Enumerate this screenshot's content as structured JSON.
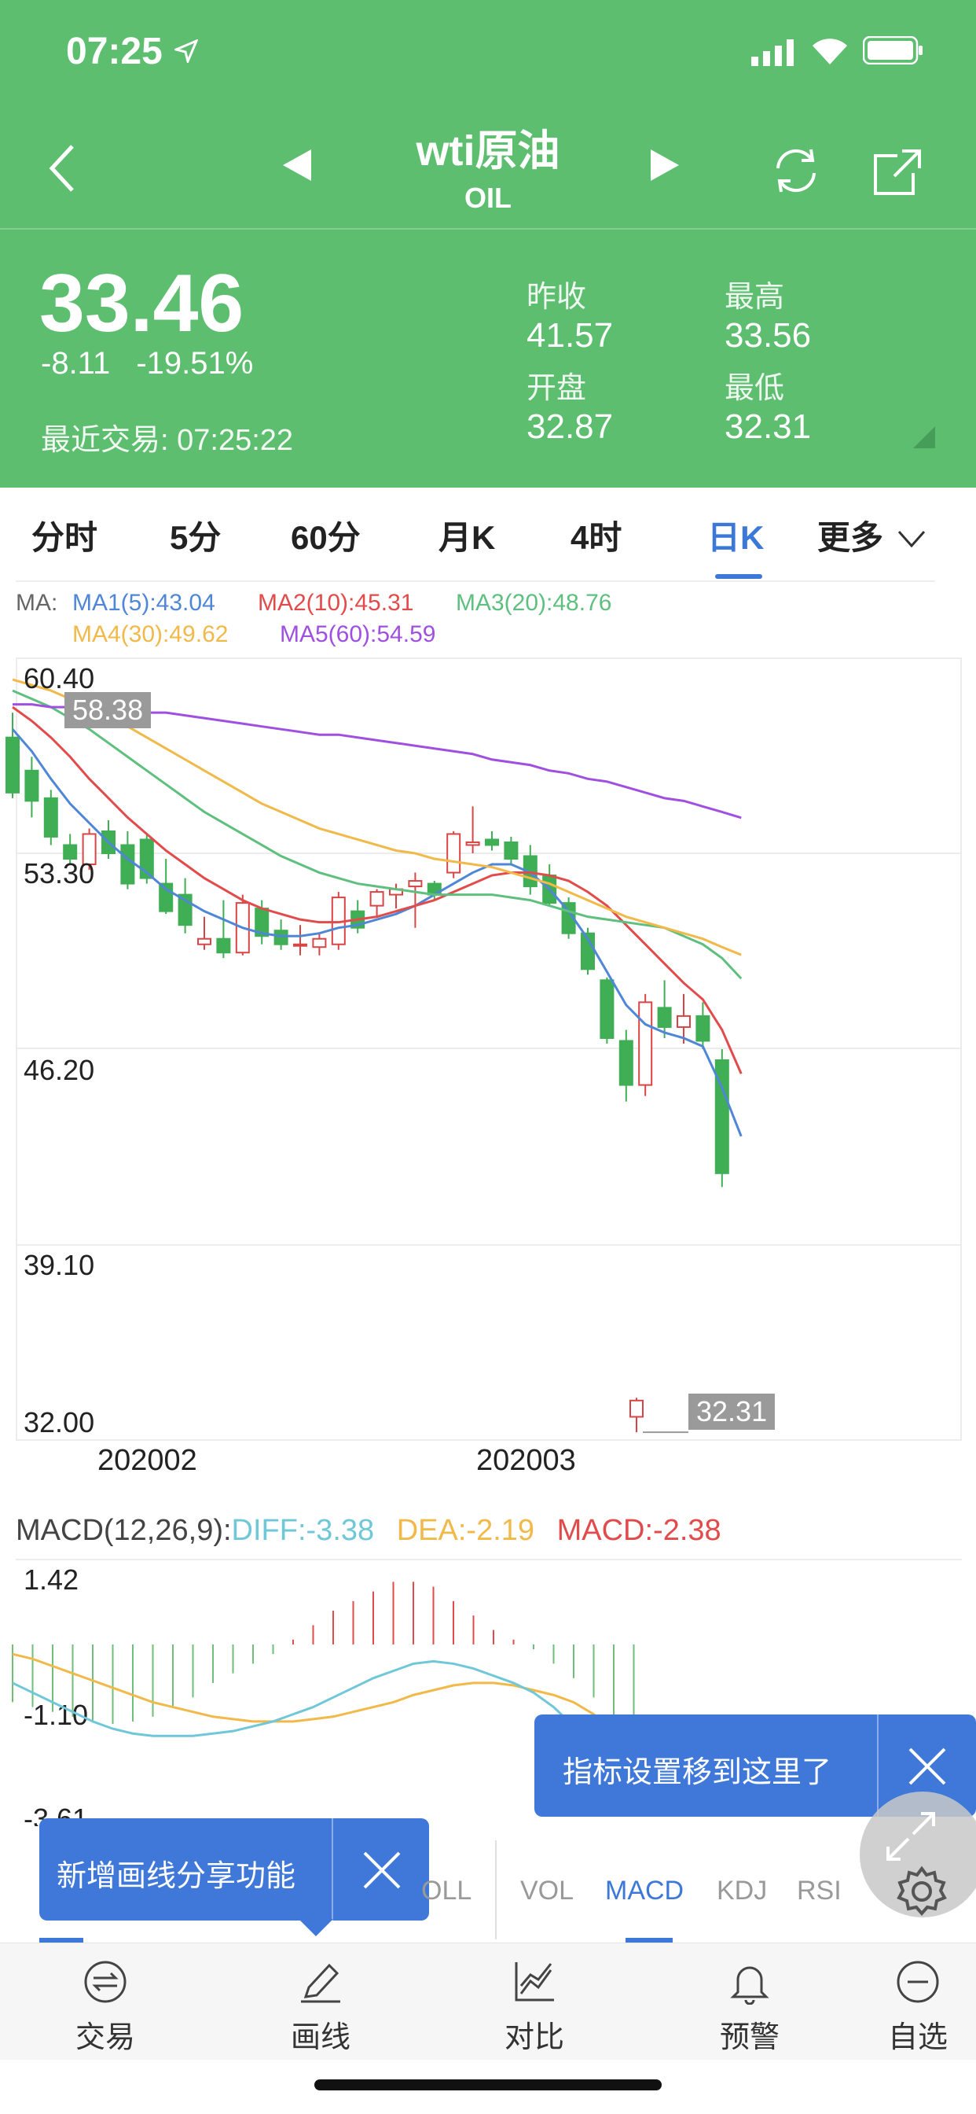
{
  "status_bar": {
    "time": "07:25"
  },
  "header": {
    "title": "wti原油",
    "subtitle": "OIL",
    "price": "33.46",
    "change": "-8.11",
    "change_pct": "-19.51%",
    "last_trade": "最近交易: 07:25:22",
    "stats": {
      "prev_close_label": "昨收",
      "prev_close": "41.57",
      "high_label": "最高",
      "high": "33.56",
      "open_label": "开盘",
      "open": "32.87",
      "low_label": "最低",
      "low": "32.31"
    }
  },
  "tabs": [
    "分时",
    "5分",
    "60分",
    "月K",
    "4时",
    "日K",
    "更多"
  ],
  "active_tab": "日K",
  "ma_legend": {
    "prefix": "MA:",
    "ma1": "MA1(5):43.04",
    "ma2": "MA2(10):45.31",
    "ma3": "MA3(20):48.76",
    "ma4": "MA4(30):49.62",
    "ma5": "MA5(60):54.59"
  },
  "colors": {
    "header_green": "#5dbe6f",
    "ma1": "#4f86d6",
    "ma2": "#e14b4b",
    "ma3": "#5fbf7f",
    "ma4": "#f0b94a",
    "ma5": "#a050e0",
    "up": "#d94545",
    "down": "#3fae55",
    "accent": "#3b78d8"
  },
  "chart_data": {
    "type": "candlestick",
    "y_axis_labels": [
      "60.40",
      "53.30",
      "46.20",
      "39.10",
      "32.00"
    ],
    "ylim": [
      32.0,
      60.4
    ],
    "x_axis_labels": [
      "202002",
      "202003"
    ],
    "highlight_high": "58.38",
    "highlight_low": "32.31",
    "candles": [
      {
        "o": 57.5,
        "h": 58.4,
        "l": 55.3,
        "c": 55.5
      },
      {
        "o": 56.3,
        "h": 56.8,
        "l": 54.6,
        "c": 55.2
      },
      {
        "o": 55.3,
        "h": 55.6,
        "l": 53.6,
        "c": 53.9
      },
      {
        "o": 53.6,
        "h": 54.0,
        "l": 52.9,
        "c": 53.1
      },
      {
        "o": 52.9,
        "h": 54.2,
        "l": 52.7,
        "c": 54.0
      },
      {
        "o": 54.1,
        "h": 54.5,
        "l": 53.1,
        "c": 53.3
      },
      {
        "o": 53.6,
        "h": 54.1,
        "l": 52.0,
        "c": 52.2
      },
      {
        "o": 53.8,
        "h": 54.0,
        "l": 52.2,
        "c": 52.4
      },
      {
        "o": 52.2,
        "h": 53.1,
        "l": 51.1,
        "c": 51.2
      },
      {
        "o": 51.8,
        "h": 52.4,
        "l": 50.4,
        "c": 50.7
      },
      {
        "o": 50.0,
        "h": 51.0,
        "l": 49.8,
        "c": 50.2
      },
      {
        "o": 50.2,
        "h": 51.6,
        "l": 49.5,
        "c": 49.7
      },
      {
        "o": 49.7,
        "h": 51.8,
        "l": 49.6,
        "c": 51.5
      },
      {
        "o": 51.3,
        "h": 51.6,
        "l": 50.0,
        "c": 50.3
      },
      {
        "o": 50.5,
        "h": 50.9,
        "l": 49.8,
        "c": 50.0
      },
      {
        "o": 50.0,
        "h": 50.7,
        "l": 49.6,
        "c": 50.0
      },
      {
        "o": 49.9,
        "h": 50.4,
        "l": 49.6,
        "c": 50.2
      },
      {
        "o": 50.0,
        "h": 51.9,
        "l": 49.8,
        "c": 51.7
      },
      {
        "o": 51.2,
        "h": 51.6,
        "l": 50.4,
        "c": 50.6
      },
      {
        "o": 51.4,
        "h": 52.0,
        "l": 51.0,
        "c": 51.9
      },
      {
        "o": 51.8,
        "h": 52.2,
        "l": 51.3,
        "c": 52.0
      },
      {
        "o": 52.1,
        "h": 52.6,
        "l": 50.6,
        "c": 52.3
      },
      {
        "o": 52.2,
        "h": 52.3,
        "l": 51.6,
        "c": 51.8
      },
      {
        "o": 52.6,
        "h": 54.1,
        "l": 52.4,
        "c": 54.0
      },
      {
        "o": 53.6,
        "h": 55.0,
        "l": 53.3,
        "c": 53.7
      },
      {
        "o": 53.8,
        "h": 54.1,
        "l": 53.4,
        "c": 53.6
      },
      {
        "o": 53.7,
        "h": 53.9,
        "l": 52.9,
        "c": 53.1
      },
      {
        "o": 53.2,
        "h": 53.6,
        "l": 51.8,
        "c": 52.1
      },
      {
        "o": 52.5,
        "h": 52.9,
        "l": 51.4,
        "c": 51.5
      },
      {
        "o": 51.5,
        "h": 51.7,
        "l": 50.2,
        "c": 50.4
      },
      {
        "o": 50.4,
        "h": 50.6,
        "l": 48.9,
        "c": 49.1
      },
      {
        "o": 48.7,
        "h": 48.8,
        "l": 46.4,
        "c": 46.6
      },
      {
        "o": 46.5,
        "h": 46.9,
        "l": 44.3,
        "c": 44.9
      },
      {
        "o": 44.9,
        "h": 48.2,
        "l": 44.5,
        "c": 47.9
      },
      {
        "o": 47.7,
        "h": 48.7,
        "l": 46.6,
        "c": 47.0
      },
      {
        "o": 47.0,
        "h": 48.2,
        "l": 46.4,
        "c": 47.4
      },
      {
        "o": 47.4,
        "h": 47.9,
        "l": 46.2,
        "c": 46.5
      },
      {
        "o": 45.8,
        "h": 46.2,
        "l": 41.2,
        "c": 41.7
      },
      {
        "o": 32.87,
        "h": 33.56,
        "l": 32.31,
        "c": 33.46
      }
    ],
    "ma_lines": {
      "MA1(5)": [
        57.8,
        57.0,
        56.0,
        55.1,
        54.4,
        53.7,
        53.1,
        52.6,
        52.0,
        51.6,
        51.2,
        50.9,
        50.6,
        50.4,
        50.3,
        50.3,
        50.4,
        50.6,
        50.7,
        50.9,
        51.1,
        51.4,
        51.8,
        52.2,
        52.6,
        52.9,
        52.9,
        52.6,
        52.0,
        51.2,
        50.2,
        49.0,
        47.8,
        47.1,
        46.8,
        46.6,
        46.3,
        44.8,
        43.04
      ],
      "MA2(10)": [
        58.6,
        58.1,
        57.5,
        56.8,
        56.0,
        55.3,
        54.6,
        54.0,
        53.4,
        52.9,
        52.4,
        52.0,
        51.6,
        51.3,
        51.1,
        50.9,
        50.8,
        50.8,
        50.9,
        51.0,
        51.2,
        51.4,
        51.6,
        51.9,
        52.2,
        52.5,
        52.6,
        52.6,
        52.5,
        52.3,
        51.9,
        51.4,
        50.7,
        50.0,
        49.3,
        48.6,
        48.0,
        46.9,
        45.31
      ],
      "MA3(20)": [
        59.2,
        58.9,
        58.6,
        58.2,
        57.8,
        57.3,
        56.8,
        56.3,
        55.8,
        55.3,
        54.8,
        54.4,
        54.0,
        53.6,
        53.2,
        52.9,
        52.6,
        52.4,
        52.2,
        52.1,
        52.0,
        51.9,
        51.8,
        51.8,
        51.8,
        51.8,
        51.7,
        51.6,
        51.4,
        51.2,
        51.0,
        50.9,
        50.8,
        50.7,
        50.6,
        50.3,
        50.0,
        49.5,
        48.76
      ],
      "MA4(30)": [
        59.6,
        59.4,
        59.2,
        58.9,
        58.6,
        58.3,
        57.9,
        57.5,
        57.1,
        56.7,
        56.3,
        55.9,
        55.5,
        55.1,
        54.8,
        54.5,
        54.2,
        54.0,
        53.8,
        53.6,
        53.4,
        53.3,
        53.1,
        53.0,
        52.9,
        52.8,
        52.6,
        52.4,
        52.2,
        51.9,
        51.6,
        51.3,
        51.0,
        50.8,
        50.6,
        50.4,
        50.2,
        49.9,
        49.62
      ],
      "MA5(60)": [
        58.7,
        58.7,
        58.6,
        58.6,
        58.6,
        58.5,
        58.5,
        58.4,
        58.4,
        58.3,
        58.2,
        58.1,
        58.0,
        57.9,
        57.8,
        57.7,
        57.6,
        57.6,
        57.5,
        57.4,
        57.3,
        57.2,
        57.1,
        57.0,
        56.9,
        56.7,
        56.6,
        56.5,
        56.3,
        56.2,
        56.0,
        55.9,
        55.7,
        55.5,
        55.3,
        55.2,
        55.0,
        54.8,
        54.59
      ]
    }
  },
  "macd": {
    "legend_prefix": "MACD(12,26,9):",
    "diff": "DIFF:-3.38",
    "dea": "DEA:-2.19",
    "macd": "MACD:-2.38",
    "y_labels": [
      "1.42",
      "-1.10",
      "-3.61"
    ],
    "ylim": [
      -3.61,
      1.42
    ],
    "diff_values": [
      -0.8,
      -1.0,
      -1.2,
      -1.4,
      -1.6,
      -1.75,
      -1.85,
      -1.9,
      -1.9,
      -1.9,
      -1.85,
      -1.8,
      -1.7,
      -1.6,
      -1.45,
      -1.3,
      -1.1,
      -0.9,
      -0.7,
      -0.55,
      -0.4,
      -0.35,
      -0.4,
      -0.5,
      -0.65,
      -0.8,
      -1.0,
      -1.3,
      -1.7,
      -2.2,
      -2.8,
      -3.38
    ],
    "dea_values": [
      -0.2,
      -0.3,
      -0.45,
      -0.6,
      -0.75,
      -0.9,
      -1.05,
      -1.2,
      -1.3,
      -1.4,
      -1.5,
      -1.55,
      -1.6,
      -1.6,
      -1.6,
      -1.55,
      -1.5,
      -1.4,
      -1.3,
      -1.2,
      -1.05,
      -0.95,
      -0.85,
      -0.8,
      -0.8,
      -0.85,
      -0.95,
      -1.05,
      -1.2,
      -1.45,
      -1.8,
      -2.19
    ],
    "hist_values": [
      -1.2,
      -1.3,
      -1.4,
      -1.5,
      -1.6,
      -1.65,
      -1.6,
      -1.5,
      -1.3,
      -1.1,
      -0.8,
      -0.6,
      -0.4,
      -0.2,
      0.1,
      0.4,
      0.7,
      0.9,
      1.1,
      1.3,
      1.3,
      1.2,
      0.9,
      0.6,
      0.3,
      0.1,
      -0.1,
      -0.4,
      -0.7,
      -1.1,
      -1.6,
      -2.38
    ]
  },
  "tooltips": {
    "indicator_moved": "指标设置移到这里了",
    "new_draw_share": "新增画线分享功能"
  },
  "indicator_tabs": [
    "OLL",
    "VOL",
    "MACD",
    "KDJ",
    "RSI"
  ],
  "active_indicator": "MACD",
  "bottom_nav": [
    "交易",
    "画线",
    "对比",
    "预警",
    "自选"
  ]
}
